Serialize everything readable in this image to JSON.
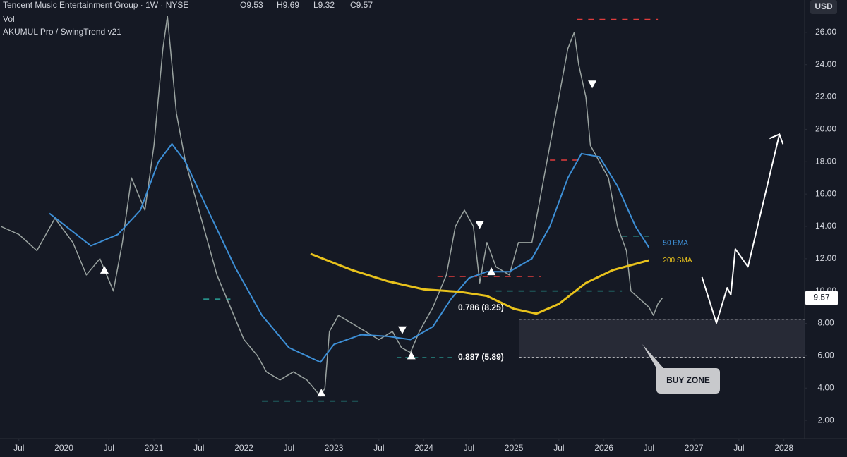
{
  "chart_data": {
    "type": "line",
    "header": {
      "title": "Tencent Music Entertainment Group · 1W · NYSE",
      "ohlc": [
        "O9.53",
        "H9.69",
        "L9.32",
        "C9.57"
      ],
      "volume": "Vol",
      "indicator": "AKUMUL Pro / SwingTrend v21"
    },
    "currency": "USD",
    "last_price": 9.57,
    "xlim": [
      2019.29,
      2028.23
    ],
    "ylim": [
      0.87,
      28.0
    ],
    "xticks": [
      {
        "value": 2019.5,
        "label": "Jul"
      },
      2020,
      {
        "value": 2020.5,
        "label": "Jul"
      },
      2021,
      {
        "value": 2021.5,
        "label": "Jul"
      },
      2022,
      {
        "value": 2022.5,
        "label": "Jul"
      },
      2023,
      {
        "value": 2023.5,
        "label": "Jul"
      },
      2024,
      {
        "value": 2024.5,
        "label": "Jul"
      },
      2025,
      {
        "value": 2025.5,
        "label": "Jul"
      },
      2026,
      {
        "value": 2026.5,
        "label": "Jul"
      },
      2027,
      {
        "value": 2027.5,
        "label": "Jul"
      },
      2028
    ],
    "yticks": [
      {
        "value": 2,
        "label": "2.00"
      },
      {
        "value": 4,
        "label": "4.00"
      },
      {
        "value": 6,
        "label": "6.00"
      },
      {
        "value": 8,
        "label": "8.00"
      },
      {
        "value": 10,
        "label": "10.00"
      },
      {
        "value": 12,
        "label": "12.00"
      },
      {
        "value": 14,
        "label": "14.00"
      },
      {
        "value": 16,
        "label": "16.00"
      },
      {
        "value": 18,
        "label": "18.00"
      },
      {
        "value": 20,
        "label": "20.00"
      },
      {
        "value": 22,
        "label": "22.00"
      },
      {
        "value": 24,
        "label": "24.00"
      },
      {
        "value": 26,
        "label": "26.00"
      }
    ],
    "series": [
      {
        "color": "#9aa3a0",
        "width": 1.5,
        "x": [
          2019.3,
          2019.5,
          2019.7,
          2019.9,
          2020.1,
          2020.25,
          2020.4,
          2020.55,
          2020.65,
          2020.75,
          2020.9,
          2021.0,
          2021.1,
          2021.15,
          2021.25,
          2021.35,
          2021.5,
          2021.6,
          2021.7,
          2021.85,
          2022.0,
          2022.15,
          2022.25,
          2022.4,
          2022.55,
          2022.7,
          2022.85,
          2022.9,
          2022.95,
          2023.05,
          2023.2,
          2023.35,
          2023.5,
          2023.65,
          2023.75,
          2023.85,
          2023.95,
          2024.1,
          2024.25,
          2024.35,
          2024.45,
          2024.55,
          2024.62,
          2024.7,
          2024.8,
          2024.95,
          2025.05,
          2025.2,
          2025.3,
          2025.4,
          2025.5,
          2025.6,
          2025.67,
          2025.72,
          2025.8,
          2025.85,
          2025.95,
          2026.05,
          2026.15,
          2026.25,
          2026.3,
          2026.4,
          2026.5,
          2026.55,
          2026.6,
          2026.65
        ],
        "values": [
          14,
          13.5,
          12.5,
          14.5,
          13,
          11,
          12,
          10,
          13,
          17,
          15,
          19,
          25,
          27,
          21,
          18,
          15,
          13,
          11,
          9,
          7,
          6,
          5,
          4.5,
          5,
          4.5,
          3.5,
          4,
          7.5,
          8.5,
          8,
          7.5,
          7,
          7.5,
          6.5,
          6.2,
          7.5,
          9,
          11,
          14,
          15,
          14,
          10.5,
          13,
          11.5,
          11,
          13,
          13,
          16,
          19,
          22,
          25,
          26,
          24,
          22,
          19,
          18,
          17,
          14,
          12.5,
          10,
          9.5,
          9,
          8.5,
          9.2,
          9.57
        ]
      },
      {
        "name": "50 EMA",
        "color": "#3d8fd6",
        "width": 2,
        "x": [
          2019.84,
          2020.3,
          2020.6,
          2020.85,
          2021.05,
          2021.2,
          2021.35,
          2021.6,
          2021.9,
          2022.2,
          2022.5,
          2022.85,
          2023.0,
          2023.3,
          2023.6,
          2023.85,
          2024.1,
          2024.3,
          2024.5,
          2024.7,
          2024.95,
          2025.2,
          2025.4,
          2025.6,
          2025.75,
          2025.95,
          2026.15,
          2026.35,
          2026.5
        ],
        "values": [
          14.8,
          12.8,
          13.5,
          15,
          18,
          19.1,
          18,
          15,
          11.5,
          8.5,
          6.5,
          5.6,
          6.7,
          7.3,
          7.2,
          7.0,
          7.8,
          9.5,
          10.8,
          11.2,
          11.2,
          12,
          14,
          17,
          18.5,
          18.3,
          16.5,
          14,
          12.7
        ]
      },
      {
        "name": "200 SMA",
        "color": "#e8c21c",
        "width": 3,
        "x": [
          2022.74,
          2023.2,
          2023.6,
          2024.0,
          2024.4,
          2024.7,
          2025.0,
          2025.25,
          2025.5,
          2025.8,
          2026.1,
          2026.5
        ],
        "values": [
          12.3,
          11.3,
          10.6,
          10.1,
          9.95,
          9.7,
          8.9,
          8.6,
          9.2,
          10.5,
          11.3,
          11.9
        ]
      },
      {
        "color": "#ffffff",
        "width": 2,
        "x": [
          2027.09,
          2027.25,
          2027.37,
          2027.41,
          2027.46,
          2027.6,
          2027.95
        ],
        "values": [
          10.86,
          8.02,
          10.2,
          9.77,
          12.6,
          11.5,
          19.7
        ]
      }
    ],
    "signals": [
      {
        "x": 2020.45,
        "y": 11.3,
        "dir": "up"
      },
      {
        "x": 2022.86,
        "y": 3.7,
        "dir": "up"
      },
      {
        "x": 2023.86,
        "y": 6.0,
        "dir": "up"
      },
      {
        "x": 2024.75,
        "y": 11.2,
        "dir": "up"
      },
      {
        "x": 2023.76,
        "y": 7.6,
        "dir": "down"
      },
      {
        "x": 2024.62,
        "y": 14.1,
        "dir": "down"
      },
      {
        "x": 2025.87,
        "y": 22.8,
        "dir": "down"
      }
    ],
    "levels": [
      {
        "x0": 2025.7,
        "x1": 2026.6,
        "y": 26.8,
        "color": "#e03c3c"
      },
      {
        "x0": 2025.4,
        "x1": 2025.72,
        "y": 18.1,
        "color": "#e03c3c"
      },
      {
        "x0": 2026.2,
        "x1": 2026.5,
        "y": 13.4,
        "color": "#2aa198"
      },
      {
        "x0": 2024.8,
        "x1": 2026.2,
        "y": 10.0,
        "color": "#2aa198"
      },
      {
        "x0": 2024.15,
        "x1": 2025.3,
        "y": 10.9,
        "color": "#e03c3c"
      },
      {
        "x0": 2021.55,
        "x1": 2021.85,
        "y": 9.5,
        "color": "#2aa198"
      },
      {
        "x0": 2022.2,
        "x1": 2023.3,
        "y": 3.2,
        "color": "#2aa198"
      }
    ],
    "fib_levels": [
      {
        "label": "0.786 (8.25)",
        "value": 8.25
      },
      {
        "label": "0.887 (5.89)",
        "value": 5.89
      }
    ],
    "buy_zone": {
      "label": "BUY ZONE",
      "x0": 2025.06,
      "top": 8.25,
      "bottom": 5.89
    }
  }
}
